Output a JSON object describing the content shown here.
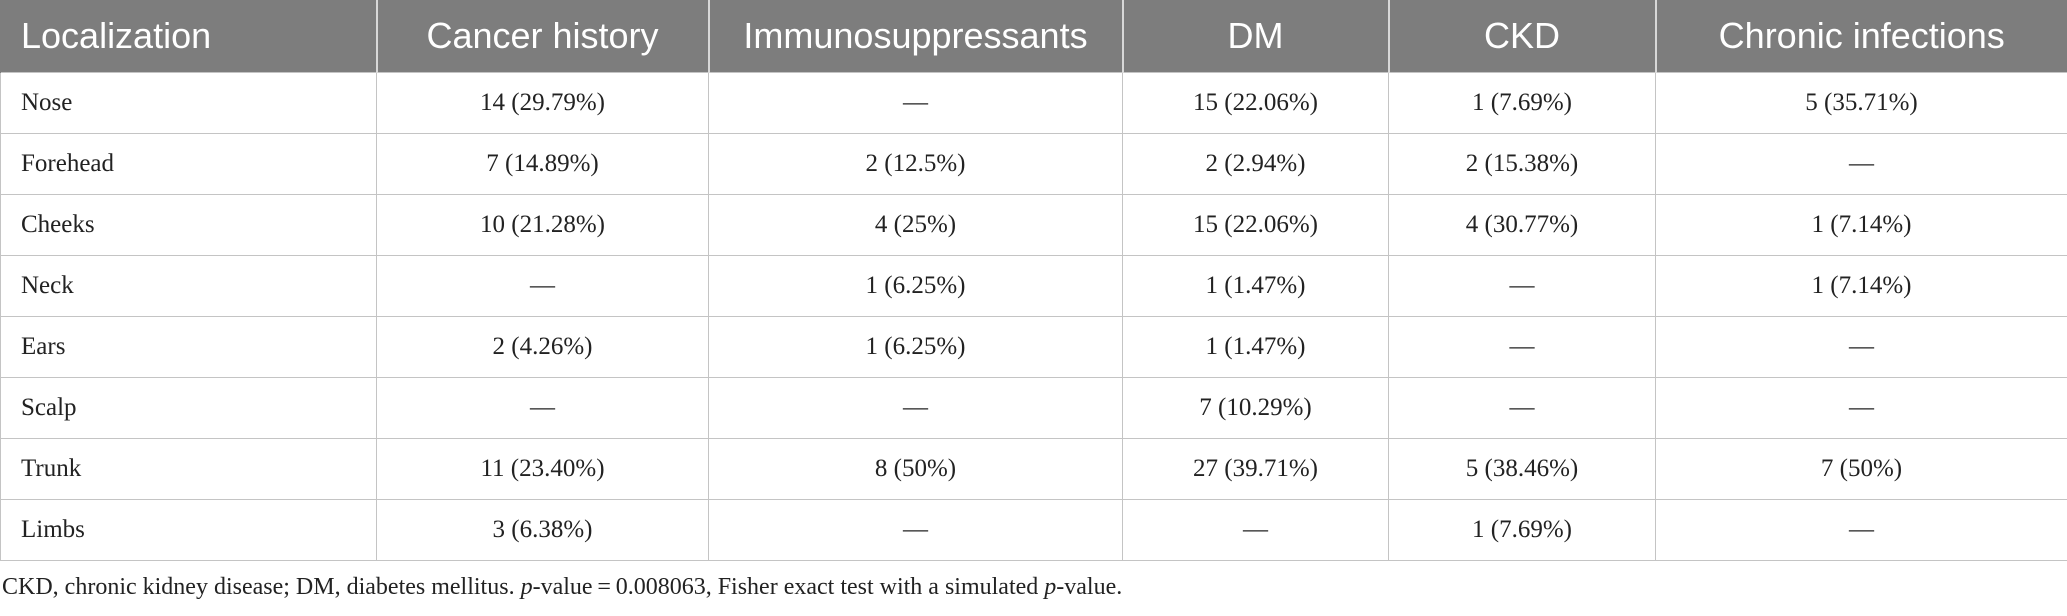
{
  "table": {
    "headers": [
      "Localization",
      "Cancer history",
      "Immunosuppressants",
      "DM",
      "CKD",
      "Chronic infections"
    ],
    "rows": [
      [
        "Nose",
        "14 (29.79%)",
        "—",
        "15 (22.06%)",
        "1 (7.69%)",
        "5 (35.71%)"
      ],
      [
        "Forehead",
        "7 (14.89%)",
        "2 (12.5%)",
        "2 (2.94%)",
        "2 (15.38%)",
        "—"
      ],
      [
        "Cheeks",
        "10 (21.28%)",
        "4 (25%)",
        "15 (22.06%)",
        "4 (30.77%)",
        "1 (7.14%)"
      ],
      [
        "Neck",
        "—",
        "1 (6.25%)",
        "1 (1.47%)",
        "—",
        "1 (7.14%)"
      ],
      [
        "Ears",
        "2 (4.26%)",
        "1 (6.25%)",
        "1 (1.47%)",
        "—",
        "—"
      ],
      [
        "Scalp",
        "—",
        "—",
        "7 (10.29%)",
        "—",
        "—"
      ],
      [
        "Trunk",
        "11 (23.40%)",
        "8 (50%)",
        "27 (39.71%)",
        "5 (38.46%)",
        "7 (50%)"
      ],
      [
        "Limbs",
        "3 (6.38%)",
        "—",
        "—",
        "1 (7.69%)",
        "—"
      ]
    ]
  },
  "footnote": {
    "part1": "CKD, chronic kidney disease; DM, diabetes mellitus. ",
    "p1": "p",
    "part2": "-value = 0.008063, Fisher exact test with a simulated ",
    "p2": "p",
    "part3": "-value."
  },
  "colors": {
    "header_background": "#7d7d7d",
    "header_text": "#ffffff",
    "grid_lines": "#c4c4c4",
    "body_text": "#222222"
  }
}
